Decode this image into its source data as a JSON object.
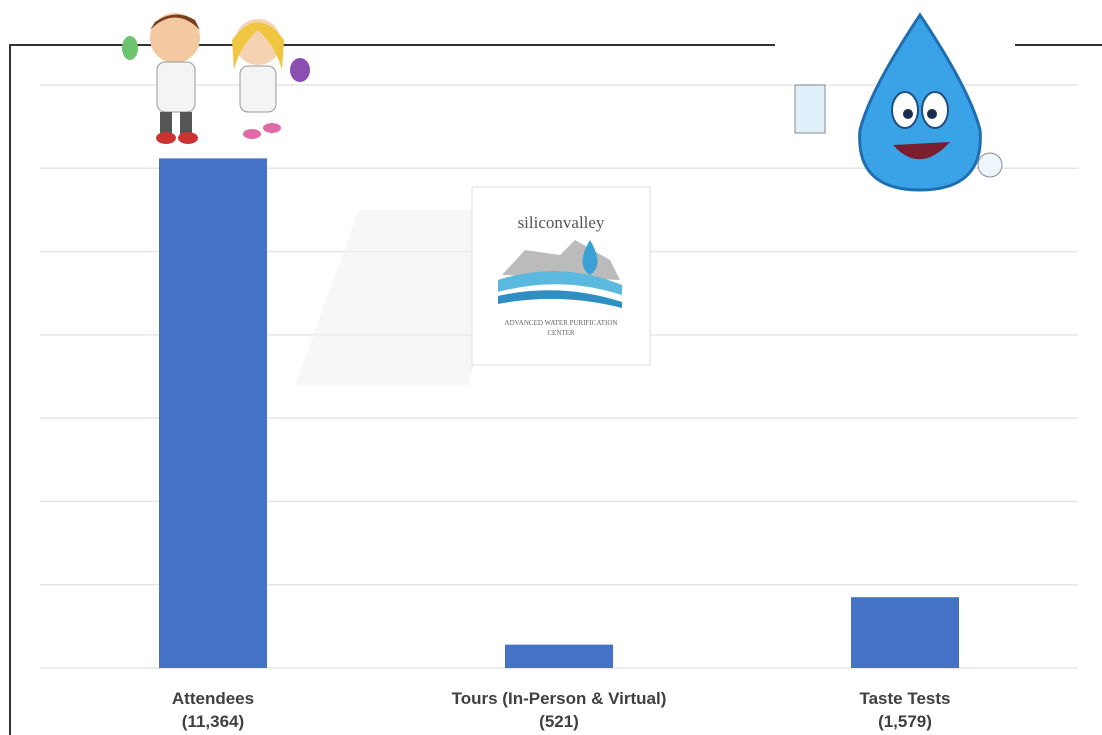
{
  "chart_data": {
    "type": "bar",
    "categories": [
      "Attendees",
      "Tours (In-Person & Virtual)",
      "Taste Tests"
    ],
    "values": [
      11364,
      521,
      1579
    ],
    "value_labels": [
      "(11,364)",
      "(521)",
      "(1,579)"
    ],
    "color": "#4472c4",
    "ylim": [
      0,
      13000
    ],
    "grid": true
  },
  "logo": {
    "title": "siliconvalley",
    "subtitle": "ADVANCED WATER PURIFICATION CENTER"
  }
}
